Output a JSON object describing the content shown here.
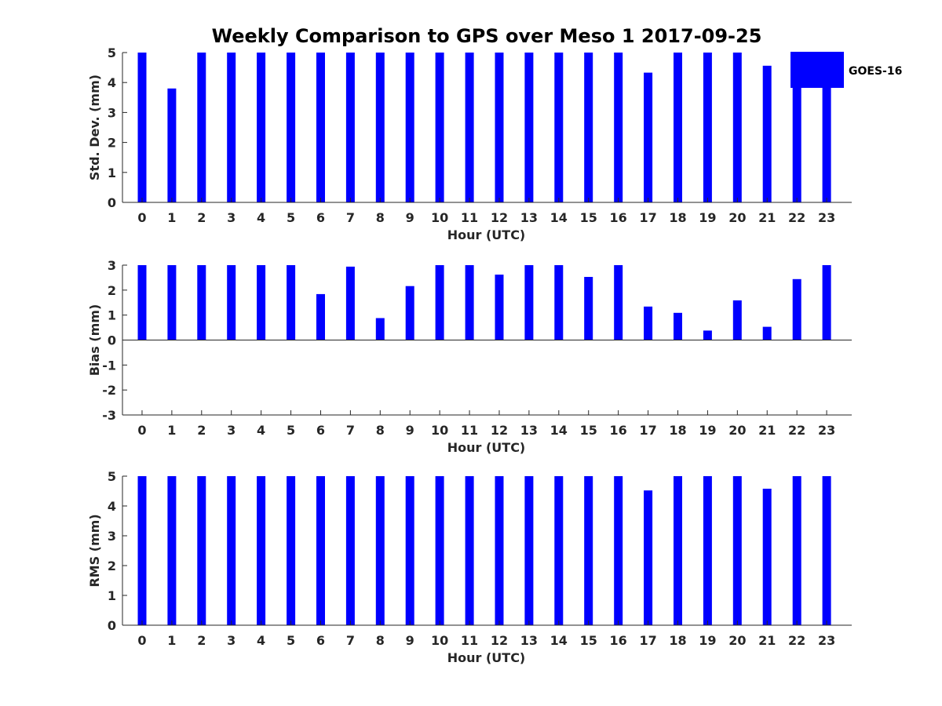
{
  "title": "Weekly Comparison to GPS over Meso 1 2017-09-25",
  "legend": {
    "label": "GOES-16",
    "placement": "top-right"
  },
  "chart_data": [
    {
      "type": "bar",
      "ylabel": "Std. Dev. (mm)",
      "xlabel": "Hour (UTC)",
      "ylim": [
        0,
        5
      ],
      "yticks": [
        0,
        1,
        2,
        3,
        4,
        5
      ],
      "categories": [
        "0",
        "1",
        "2",
        "3",
        "4",
        "5",
        "6",
        "7",
        "8",
        "9",
        "10",
        "11",
        "12",
        "13",
        "14",
        "15",
        "16",
        "17",
        "18",
        "19",
        "20",
        "21",
        "22",
        "23"
      ],
      "series": [
        {
          "name": "GOES-16",
          "color": "#0000ff",
          "values": [
            5,
            3.8,
            5,
            5,
            5,
            5,
            5,
            5,
            5,
            5,
            5,
            5,
            5,
            5,
            5,
            5,
            5,
            4.33,
            5,
            5,
            5,
            4.56,
            5,
            5
          ]
        }
      ]
    },
    {
      "type": "bar",
      "ylabel": "Bias (mm)",
      "xlabel": "Hour (UTC)",
      "ylim": [
        -3,
        3
      ],
      "yticks": [
        -3,
        -2,
        -1,
        0,
        1,
        2,
        3
      ],
      "categories": [
        "0",
        "1",
        "2",
        "3",
        "4",
        "5",
        "6",
        "7",
        "8",
        "9",
        "10",
        "11",
        "12",
        "13",
        "14",
        "15",
        "16",
        "17",
        "18",
        "19",
        "20",
        "21",
        "22",
        "23"
      ],
      "series": [
        {
          "name": "GOES-16",
          "color": "#0000ff",
          "values": [
            3,
            3,
            3,
            3,
            3,
            3,
            1.84,
            2.94,
            0.88,
            2.16,
            3,
            3,
            2.62,
            3,
            3,
            2.53,
            3,
            1.34,
            1.09,
            0.38,
            1.59,
            0.53,
            2.44,
            3
          ]
        }
      ]
    },
    {
      "type": "bar",
      "ylabel": "RMS (mm)",
      "xlabel": "Hour (UTC)",
      "ylim": [
        0,
        5
      ],
      "yticks": [
        0,
        1,
        2,
        3,
        4,
        5
      ],
      "categories": [
        "0",
        "1",
        "2",
        "3",
        "4",
        "5",
        "6",
        "7",
        "8",
        "9",
        "10",
        "11",
        "12",
        "13",
        "14",
        "15",
        "16",
        "17",
        "18",
        "19",
        "20",
        "21",
        "22",
        "23"
      ],
      "series": [
        {
          "name": "GOES-16",
          "color": "#0000ff",
          "values": [
            5,
            5,
            5,
            5,
            5,
            5,
            5,
            5,
            5,
            5,
            5,
            5,
            5,
            5,
            5,
            5,
            5,
            4.52,
            5,
            5,
            5,
            4.58,
            5,
            5
          ]
        }
      ]
    }
  ]
}
